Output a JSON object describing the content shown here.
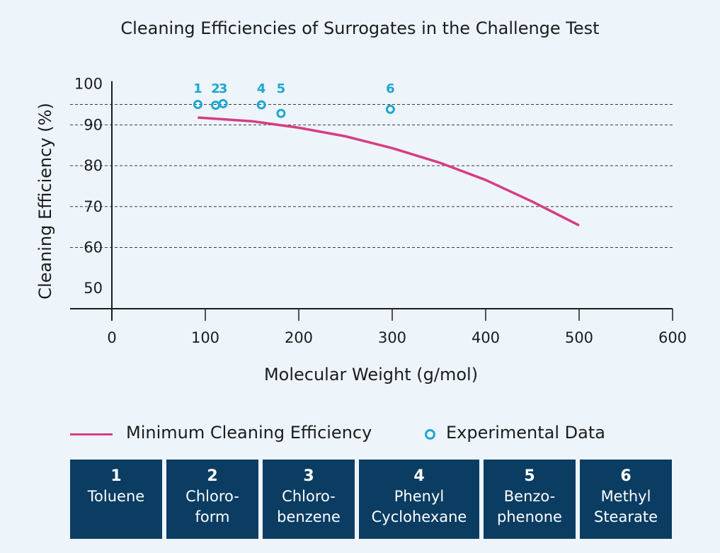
{
  "chart_data": {
    "type": "scatter",
    "title": "Cleaning Efficiencies of Surrogates in the Challenge Test",
    "xlabel": "Molecular Weight (g/mol)",
    "ylabel": "Cleaning Efficiency (%)",
    "xlim": [
      -45,
      600
    ],
    "ylim": [
      45,
      100
    ],
    "xticks": [
      0,
      100,
      200,
      300,
      400,
      500,
      600
    ],
    "xtick_labels": [
      "0",
      "100",
      "200",
      "300",
      "400",
      "500",
      "600"
    ],
    "yticks": [
      50,
      60,
      70,
      80,
      90,
      100
    ],
    "ytick_labels": [
      "50",
      "60",
      "70",
      "80",
      "90",
      "100"
    ],
    "grid": "horizontal dashed at 60, 70, 80, 90, 95",
    "series": [
      {
        "name": "Minimum Cleaning Efficiency",
        "kind": "line",
        "color": "#d63d83",
        "x": [
          92,
          150,
          200,
          250,
          300,
          350,
          400,
          450,
          500
        ],
        "y": [
          91.8,
          90.9,
          89.3,
          87.2,
          84.3,
          80.8,
          76.5,
          71.2,
          65.4
        ]
      },
      {
        "name": "Experimental Data",
        "kind": "scatter",
        "color": "#1ea7cf",
        "x": [
          92,
          111,
          119,
          160,
          181,
          298
        ],
        "y": [
          95,
          94.8,
          95.2,
          94.9,
          92.8,
          93.8
        ],
        "labels": [
          "1",
          "2",
          "3",
          "4",
          "5",
          "6"
        ]
      }
    ],
    "legend_position": "bottom"
  },
  "compounds": [
    {
      "num": "1",
      "name_lines": [
        "Toluene"
      ]
    },
    {
      "num": "2",
      "name_lines": [
        "Chloro-",
        "form"
      ]
    },
    {
      "num": "3",
      "name_lines": [
        "Chloro-",
        "benzene"
      ]
    },
    {
      "num": "4",
      "name_lines": [
        "Phenyl",
        "Cyclohexane"
      ]
    },
    {
      "num": "5",
      "name_lines": [
        "Benzo-",
        "phenone"
      ]
    },
    {
      "num": "6",
      "name_lines": [
        "Methyl",
        "Stearate"
      ]
    }
  ],
  "colors": {
    "background": "#edf4fa",
    "line": "#d63d83",
    "points": "#1ea7cf",
    "box": "#0b3d63"
  }
}
